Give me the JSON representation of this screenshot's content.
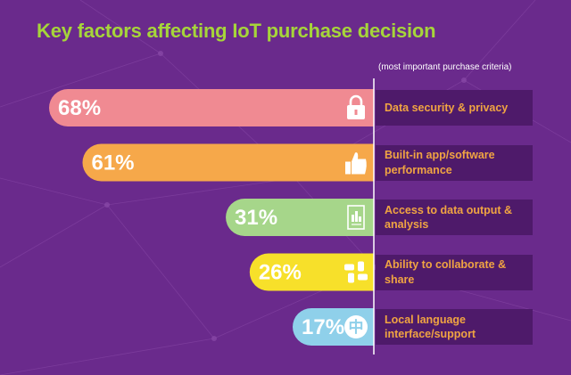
{
  "title": "Key factors affecting IoT purchase decision",
  "subtitle": "(most important purchase criteria)",
  "colors": {
    "background": "#6a2a8c",
    "title": "#a6d53a",
    "label_text": "#f0a442",
    "label_box": "#4e1a6a"
  },
  "chart_data": {
    "type": "bar",
    "orientation": "horizontal",
    "unit": "%",
    "xlim": [
      0,
      100
    ],
    "categories": [
      "Data security & privacy",
      "Built-in app/software performance",
      "Access to data output & analysis",
      "Ability to collaborate & share",
      "Local language interface/support"
    ],
    "values": [
      68,
      61,
      31,
      26,
      17
    ],
    "value_labels": [
      "68%",
      "61%",
      "31%",
      "26%",
      "17%"
    ],
    "bar_colors": [
      "#f08a92",
      "#f6a84a",
      "#a6d68a",
      "#f7e02a",
      "#8fd0ea"
    ],
    "icons": [
      "padlock-icon",
      "thumbs-up-icon",
      "document-chart-icon",
      "collaborating-hands-icon",
      "chinese-character-icon"
    ],
    "icon_glyphs": [
      "",
      "",
      "",
      "",
      "中"
    ]
  }
}
